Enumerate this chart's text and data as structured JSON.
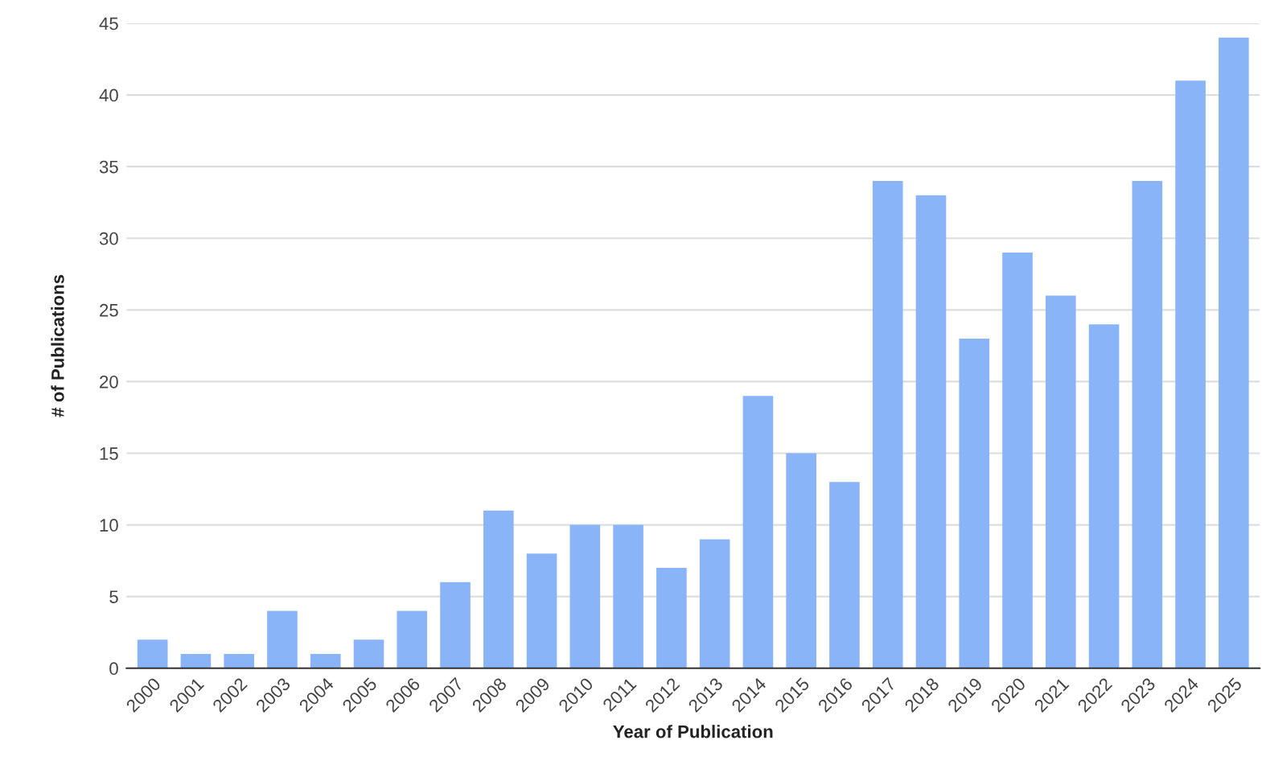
{
  "chart_data": {
    "type": "bar",
    "xlabel": "Year of Publication",
    "ylabel": "# of Publications",
    "categories": [
      "2000",
      "2001",
      "2002",
      "2003",
      "2004",
      "2005",
      "2006",
      "2007",
      "2008",
      "2009",
      "2010",
      "2011",
      "2012",
      "2013",
      "2014",
      "2015",
      "2016",
      "2017",
      "2018",
      "2019",
      "2020",
      "2021",
      "2022",
      "2023",
      "2024",
      "2025"
    ],
    "values": [
      2,
      1,
      1,
      4,
      1,
      2,
      4,
      6,
      11,
      8,
      10,
      10,
      7,
      9,
      19,
      15,
      13,
      34,
      33,
      23,
      29,
      26,
      24,
      34,
      41,
      44
    ],
    "color": "#8ab4f8",
    "ylim": [
      0,
      45
    ],
    "yticks": [
      0,
      5,
      10,
      15,
      20,
      25,
      30,
      35,
      40,
      45
    ],
    "grid": "y"
  }
}
